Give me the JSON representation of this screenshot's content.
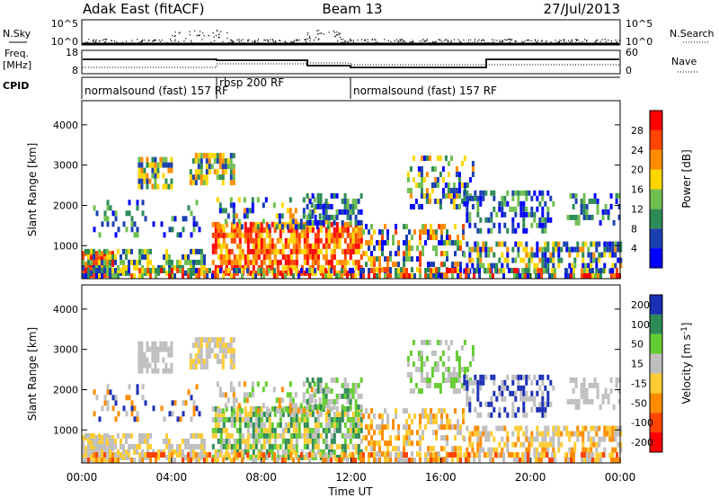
{
  "header": {
    "station": "Adak East (fitACF)",
    "beam": "Beam 13",
    "date": "27/Jul/2013"
  },
  "param_panels": {
    "nsky_label": "N.Sky",
    "nsky_ticks": [
      "10^5",
      "10^0"
    ],
    "nsearch_label": "N.Search",
    "nsearch_ticks": [
      "10^5",
      "10^0"
    ],
    "freq_label_1": "Freq.",
    "freq_label_2": "[MHz]",
    "freq_ticks": [
      "18",
      "8"
    ],
    "nave_label": "Nave",
    "nave_ticks": [
      "60",
      "0"
    ],
    "cpid_label": "CPID",
    "cpid_segments": [
      {
        "label": "normalsound (fast) 157 RF",
        "start": 0,
        "end": 6
      },
      {
        "label": "rbsp 200 RF",
        "start": 6,
        "end": 12
      },
      {
        "label": "normalsound (fast) 157 RF",
        "start": 12,
        "end": 24
      }
    ]
  },
  "chart_data": [
    {
      "type": "heatmap",
      "name": "power",
      "ylabel": "Slant Range [km]",
      "yticks": [
        "1000",
        "2000",
        "3000",
        "4000"
      ],
      "ylim": [
        180,
        4600
      ],
      "xlim": [
        0,
        24
      ],
      "colorbar_label": "Power [dB]",
      "colorbar_ticks": [
        "4",
        "8",
        "12",
        "16",
        "20",
        "24",
        "28"
      ],
      "colorbar_colors": [
        "#0000ff",
        "#1a3fb0",
        "#2e8b57",
        "#6fbf50",
        "#ffd700",
        "#ff8c00",
        "#ff4500",
        "#ff0000"
      ]
    },
    {
      "type": "heatmap",
      "name": "velocity",
      "ylabel": "Slant Range [km]",
      "yticks": [
        "1000",
        "2000",
        "3000",
        "4000"
      ],
      "ylim": [
        180,
        4600
      ],
      "xlim": [
        0,
        24
      ],
      "xlabel": "Time UT",
      "xticks": [
        "00:00",
        "04:00",
        "08:00",
        "12:00",
        "16:00",
        "20:00",
        "00:00"
      ],
      "colorbar_label": "Velocity [m s-1]",
      "colorbar_ticks": [
        "200",
        "100",
        "50",
        "15",
        "-15",
        "-50",
        "-100",
        "-200"
      ],
      "colorbar_colors": [
        "#1c2fb5",
        "#2e8b57",
        "#66cc33",
        "#bfbfbf",
        "#ffcc33",
        "#ff8c00",
        "#ff4500",
        "#ff0000"
      ]
    }
  ]
}
